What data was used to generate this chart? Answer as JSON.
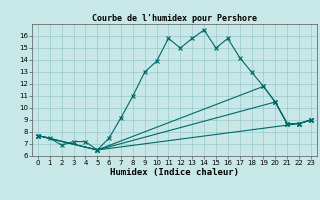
{
  "title": "Courbe de l'humidex pour Pershore",
  "xlabel": "Humidex (Indice chaleur)",
  "background_color": "#c8e8e8",
  "line_color": "#006868",
  "xlim": [
    -0.5,
    23.5
  ],
  "ylim": [
    6,
    17
  ],
  "yticks": [
    6,
    7,
    8,
    9,
    10,
    11,
    12,
    13,
    14,
    15,
    16
  ],
  "xticks": [
    0,
    1,
    2,
    3,
    4,
    5,
    6,
    7,
    8,
    9,
    10,
    11,
    12,
    13,
    14,
    15,
    16,
    17,
    18,
    19,
    20,
    21,
    22,
    23
  ],
  "lines": [
    {
      "x": [
        0,
        1,
        2,
        3,
        4,
        5,
        6,
        7,
        8,
        9,
        10,
        11,
        12,
        13,
        14,
        15,
        16,
        17,
        18,
        19,
        20,
        21,
        22,
        23
      ],
      "y": [
        7.7,
        7.5,
        6.9,
        7.2,
        7.2,
        6.5,
        7.5,
        9.2,
        11.0,
        13.0,
        13.9,
        15.8,
        15.0,
        15.8,
        16.5,
        15.0,
        15.8,
        14.2,
        13.0,
        11.8,
        10.5,
        8.7,
        8.7,
        9.0
      ]
    },
    {
      "x": [
        0,
        5,
        22,
        23
      ],
      "y": [
        7.7,
        6.5,
        8.7,
        9.0
      ]
    },
    {
      "x": [
        0,
        5,
        19,
        20,
        21,
        22,
        23
      ],
      "y": [
        7.7,
        6.5,
        11.8,
        10.5,
        8.7,
        8.7,
        9.0
      ]
    },
    {
      "x": [
        0,
        5,
        20,
        21,
        22,
        23
      ],
      "y": [
        7.7,
        6.5,
        10.5,
        8.7,
        8.7,
        9.0
      ]
    }
  ],
  "title_fontsize": 6.0,
  "xlabel_fontsize": 6.5,
  "tick_fontsize": 5.0
}
